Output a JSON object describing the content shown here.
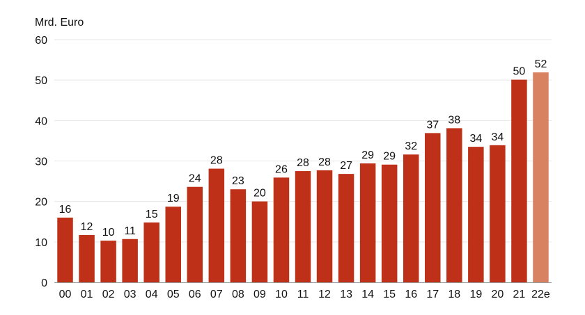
{
  "chart_data": {
    "type": "bar",
    "ylabel": "Mrd. Euro",
    "ylim": [
      0,
      60
    ],
    "yticks": [
      0,
      10,
      20,
      30,
      40,
      50,
      60
    ],
    "grid": true,
    "categories": [
      "00",
      "01",
      "02",
      "03",
      "04",
      "05",
      "06",
      "07",
      "08",
      "09",
      "10",
      "11",
      "12",
      "13",
      "14",
      "15",
      "16",
      "17",
      "18",
      "19",
      "20",
      "21",
      "22e"
    ],
    "values": [
      16,
      11.7,
      10.3,
      10.7,
      14.8,
      18.7,
      23.6,
      28.1,
      23,
      20,
      25.9,
      27.5,
      27.7,
      26.8,
      29.4,
      29.1,
      31.6,
      36.9,
      38.1,
      33.5,
      33.9,
      50.1,
      51.9
    ],
    "value_labels": [
      "16",
      "12",
      "10",
      "11",
      "15",
      "19",
      "24",
      "28",
      "23",
      "20",
      "26",
      "28",
      "28",
      "27",
      "29",
      "29",
      "32",
      "37",
      "38",
      "34",
      "34",
      "50",
      "52"
    ],
    "colors": {
      "bar": "#bf3018",
      "estimate_bar": "#d98261"
    }
  }
}
